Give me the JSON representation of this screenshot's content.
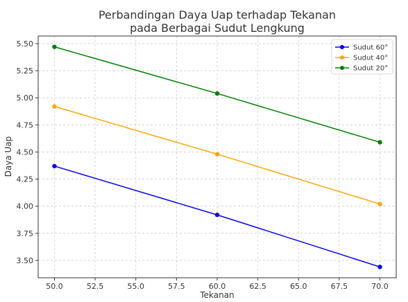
{
  "chart_data": {
    "type": "line",
    "title_lines": [
      "Perbandingan Daya Uap terhadap Tekanan",
      "pada Berbagai Sudut Lengkung"
    ],
    "xlabel": "Tekanan",
    "ylabel": "Daya Uap",
    "xlim": [
      49,
      71
    ],
    "ylim": [
      3.34,
      5.57
    ],
    "xticks": [
      50.0,
      52.5,
      55.0,
      57.5,
      60.0,
      62.5,
      65.0,
      67.5,
      70.0
    ],
    "yticks": [
      3.5,
      3.75,
      4.0,
      4.25,
      4.5,
      4.75,
      5.0,
      5.25,
      5.5
    ],
    "x": [
      50,
      60,
      70
    ],
    "grid": true,
    "legend_position": "top-right",
    "series": [
      {
        "name": "Sudut 60°",
        "color": "#0000ff",
        "values": [
          4.37,
          3.92,
          3.44
        ]
      },
      {
        "name": "Sudut 40°",
        "color": "#ffa500",
        "values": [
          4.92,
          4.48,
          4.02
        ]
      },
      {
        "name": "Sudut 20°",
        "color": "#008000",
        "values": [
          5.47,
          5.04,
          4.59
        ]
      }
    ]
  }
}
